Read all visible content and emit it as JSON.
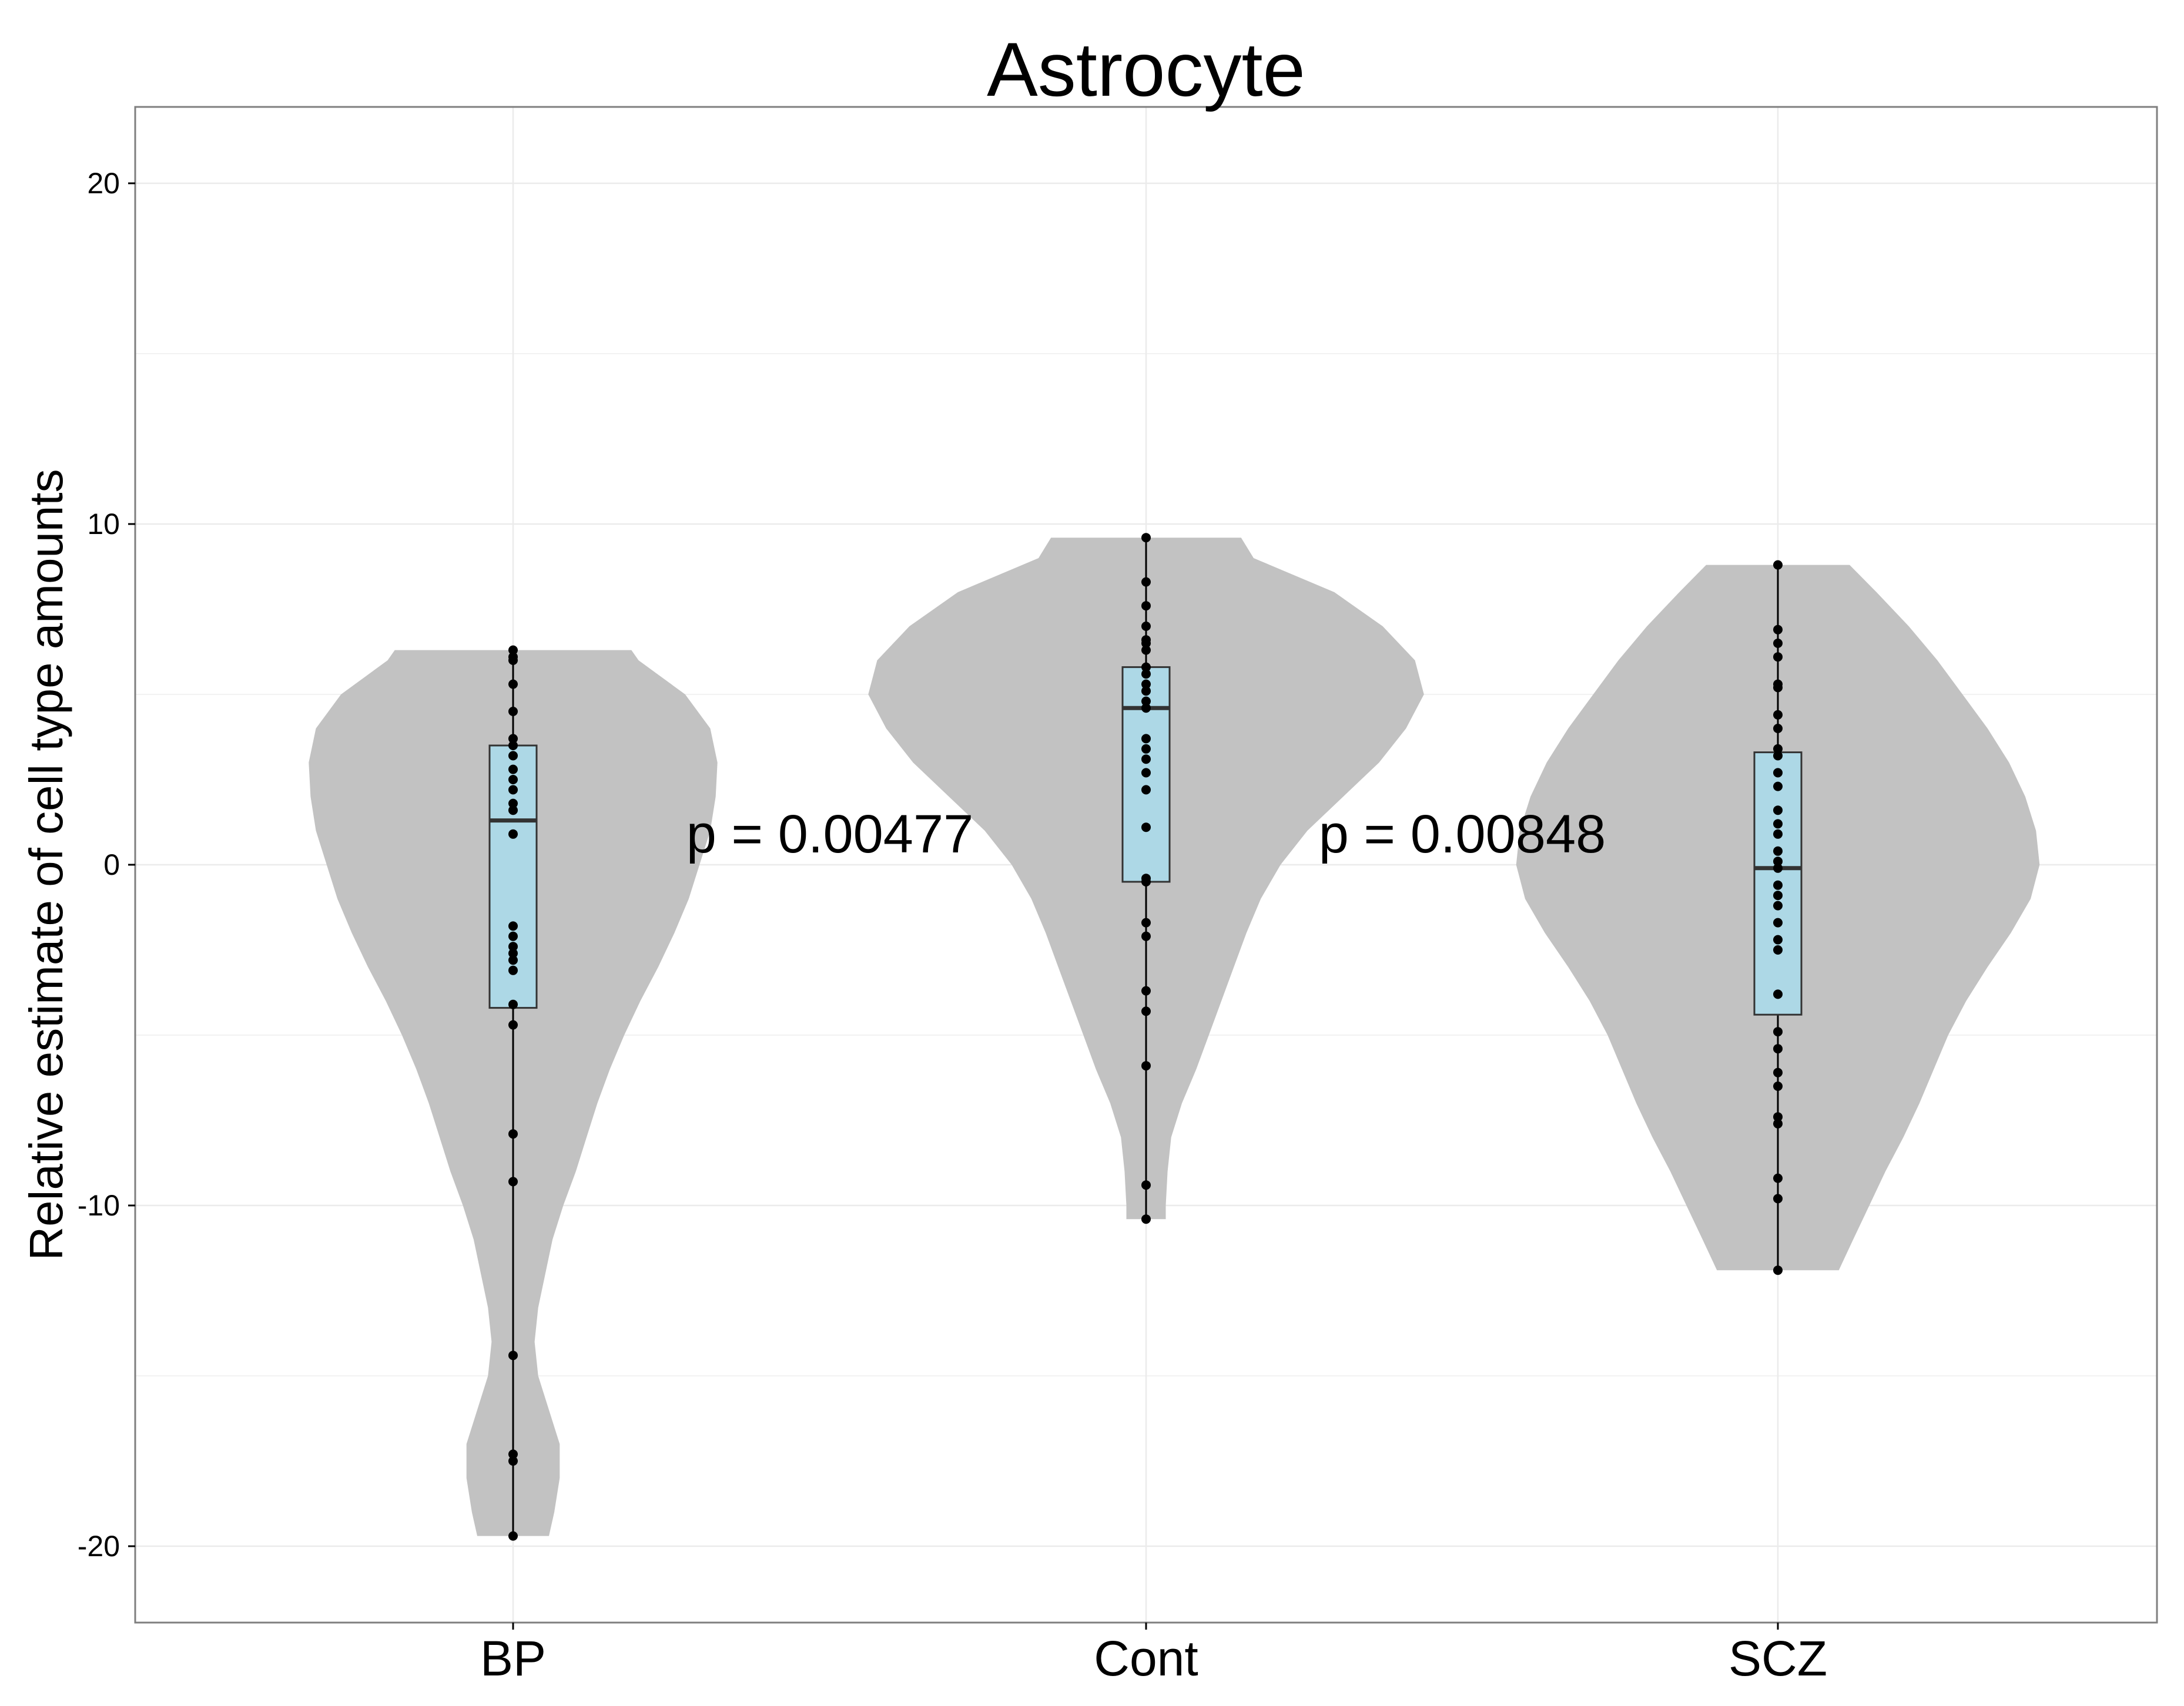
{
  "chart_data": {
    "type": "violin",
    "title": "Astrocyte",
    "xlabel": "",
    "ylabel": "Relative estimate of cell type amounts",
    "ylim": [
      -22.3,
      22.2
    ],
    "yticks": [
      20,
      10,
      0,
      -10,
      -20
    ],
    "ytick_labels": [
      "20",
      "10",
      "0",
      "-10",
      "-20"
    ],
    "categories": [
      "BP",
      "Cont",
      "SCZ"
    ],
    "grid": true,
    "legend": "none",
    "colors": {
      "violin_fill": "#c2c2c2",
      "box_fill": "#add8e6",
      "point": "#000000",
      "grid": "#ebebeb",
      "panel_border": "#7f7f7f"
    },
    "groups": [
      {
        "category": "BP",
        "box": {
          "q1": -4.2,
          "median": 1.3,
          "q3": 3.5,
          "whisker_low": -19.7,
          "whisker_high": 6.3
        },
        "violin_profile": [
          [
            -19.7,
            0.2
          ],
          [
            -19.0,
            0.23
          ],
          [
            -18.0,
            0.26
          ],
          [
            -17.0,
            0.26
          ],
          [
            -16.0,
            0.2
          ],
          [
            -15.0,
            0.14
          ],
          [
            -14.0,
            0.12
          ],
          [
            -13.0,
            0.14
          ],
          [
            -12.0,
            0.18
          ],
          [
            -11.0,
            0.22
          ],
          [
            -10.0,
            0.28
          ],
          [
            -9.0,
            0.35
          ],
          [
            -8.0,
            0.41
          ],
          [
            -7.0,
            0.47
          ],
          [
            -6.0,
            0.54
          ],
          [
            -5.0,
            0.62
          ],
          [
            -4.0,
            0.71
          ],
          [
            -3.0,
            0.81
          ],
          [
            -2.0,
            0.9
          ],
          [
            -1.0,
            0.98
          ],
          [
            0.0,
            1.04
          ],
          [
            1.0,
            1.1
          ],
          [
            2.0,
            1.13
          ],
          [
            3.0,
            1.14
          ],
          [
            4.0,
            1.1
          ],
          [
            5.0,
            0.96
          ],
          [
            6.0,
            0.7
          ],
          [
            6.3,
            0.66
          ]
        ],
        "points": [
          6.3,
          6.1,
          6.0,
          5.3,
          4.5,
          3.7,
          3.5,
          3.2,
          2.8,
          2.5,
          2.2,
          1.8,
          1.6,
          0.9,
          -1.8,
          -2.1,
          -2.4,
          -2.6,
          -2.8,
          -3.1,
          -4.1,
          -4.7,
          -7.9,
          -9.3,
          -14.4,
          -17.3,
          -17.5,
          -19.7
        ]
      },
      {
        "category": "Cont",
        "box": {
          "q1": -0.5,
          "median": 4.6,
          "q3": 5.8,
          "whisker_low": -10.4,
          "whisker_high": 9.6
        },
        "violin_profile": [
          [
            -10.4,
            0.11
          ],
          [
            -10.0,
            0.11
          ],
          [
            -9.0,
            0.12
          ],
          [
            -8.0,
            0.14
          ],
          [
            -7.0,
            0.2
          ],
          [
            -6.0,
            0.28
          ],
          [
            -5.0,
            0.35
          ],
          [
            -4.0,
            0.42
          ],
          [
            -3.0,
            0.49
          ],
          [
            -2.0,
            0.56
          ],
          [
            -1.0,
            0.64
          ],
          [
            0.0,
            0.75
          ],
          [
            1.0,
            0.9
          ],
          [
            2.0,
            1.1
          ],
          [
            3.0,
            1.3
          ],
          [
            4.0,
            1.45
          ],
          [
            5.0,
            1.55
          ],
          [
            6.0,
            1.5
          ],
          [
            7.0,
            1.32
          ],
          [
            8.0,
            1.05
          ],
          [
            9.0,
            0.6
          ],
          [
            9.6,
            0.53
          ]
        ],
        "points": [
          9.6,
          8.3,
          7.6,
          7.0,
          6.6,
          6.5,
          6.3,
          5.8,
          5.6,
          5.3,
          5.1,
          4.8,
          4.6,
          3.7,
          3.4,
          3.1,
          2.7,
          2.2,
          1.1,
          -0.4,
          -0.5,
          -1.7,
          -2.1,
          -3.7,
          -4.3,
          -5.9,
          -9.4,
          -10.4
        ]
      },
      {
        "category": "SCZ",
        "box": {
          "q1": -4.4,
          "median": -0.1,
          "q3": 3.3,
          "whisker_low": -11.9,
          "whisker_high": 8.8
        },
        "violin_profile": [
          [
            -11.9,
            0.34
          ],
          [
            -11.0,
            0.42
          ],
          [
            -10.0,
            0.51
          ],
          [
            -9.0,
            0.6
          ],
          [
            -8.0,
            0.7
          ],
          [
            -7.0,
            0.79
          ],
          [
            -6.0,
            0.87
          ],
          [
            -5.0,
            0.95
          ],
          [
            -4.0,
            1.05
          ],
          [
            -3.0,
            1.17
          ],
          [
            -2.0,
            1.3
          ],
          [
            -1.0,
            1.41
          ],
          [
            0.0,
            1.46
          ],
          [
            1.0,
            1.44
          ],
          [
            2.0,
            1.38
          ],
          [
            3.0,
            1.29
          ],
          [
            4.0,
            1.17
          ],
          [
            5.0,
            1.03
          ],
          [
            6.0,
            0.89
          ],
          [
            7.0,
            0.73
          ],
          [
            8.0,
            0.55
          ],
          [
            8.8,
            0.4
          ]
        ],
        "points": [
          8.8,
          6.9,
          6.5,
          6.1,
          5.3,
          5.2,
          4.4,
          4.0,
          3.4,
          3.2,
          2.7,
          2.3,
          1.6,
          1.2,
          0.9,
          0.4,
          0.1,
          -0.1,
          -0.6,
          -0.9,
          -1.2,
          -1.7,
          -2.2,
          -2.5,
          -3.8,
          -4.9,
          -5.4,
          -6.1,
          -6.5,
          -7.4,
          -7.6,
          -9.2,
          -9.8,
          -11.9
        ]
      }
    ],
    "annotations": [
      {
        "text": "p = 0.00477",
        "x_between": [
          "BP",
          "Cont"
        ],
        "y": 0.9
      },
      {
        "text": "p = 0.00848",
        "x_between": [
          "Cont",
          "SCZ"
        ],
        "y": 0.9
      }
    ]
  }
}
